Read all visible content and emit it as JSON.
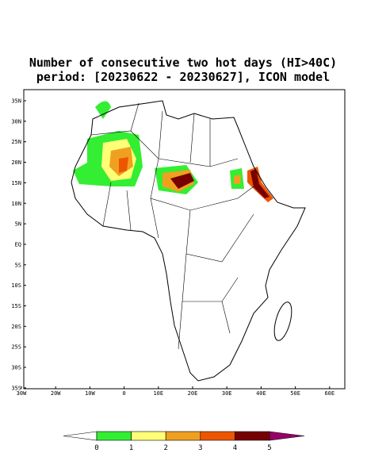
{
  "title": [
    "Number of consecutive two hot days (HI>40C)",
    "period: [20230622 - 20230627], ICON model"
  ],
  "lat_labels": [
    "35N",
    "30N",
    "25N",
    "20N",
    "15N",
    "10N",
    "5N",
    "EQ",
    "5S",
    "10S",
    "15S",
    "20S",
    "25S",
    "30S",
    "35S"
  ],
  "lon_labels": [
    "30W",
    "20W",
    "10W",
    "0",
    "10E",
    "20E",
    "30E",
    "40E",
    "50E",
    "60E"
  ],
  "colorbar": {
    "ticks": [
      0,
      1,
      2,
      3,
      4,
      5
    ],
    "colors": [
      "#ffffff",
      "#33ee33",
      "#ffff77",
      "#f0a020",
      "#ee5500",
      "#770000",
      "#990066"
    ]
  }
}
